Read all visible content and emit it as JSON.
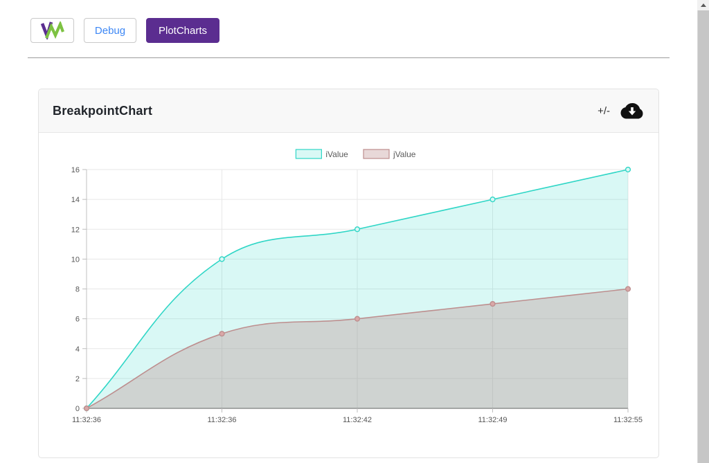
{
  "navbar": {
    "logo_name": "VM logo",
    "debug_label": "Debug",
    "plotcharts_label": "PlotCharts"
  },
  "card": {
    "title": "BreakpointChart",
    "toggle_label": "+/-"
  },
  "colors": {
    "plotcharts_bg": "#5b2d90",
    "debug_text": "#3d87f5",
    "logo_purple": "#5b2d90",
    "logo_green": "#7dc242",
    "ivalue_line": "#2fd6c6",
    "ivalue_fill": "rgba(47,214,198,0.18)",
    "jvalue_line": "#bd8e8e",
    "jvalue_fill": "rgba(189,142,142,0.35)"
  },
  "chart_data": {
    "type": "area",
    "title": "BreakpointChart",
    "categories": [
      "11:32:36",
      "11:32:36",
      "11:32:42",
      "11:32:49",
      "11:32:55"
    ],
    "series": [
      {
        "name": "iValue",
        "values": [
          0,
          10,
          12,
          14,
          16
        ],
        "line_color": "#2fd6c6",
        "fill_color": "rgba(47,214,198,0.18)",
        "point_fill": "#d9f8f5"
      },
      {
        "name": "jValue",
        "values": [
          0,
          5,
          6,
          7,
          8
        ],
        "line_color": "#bd8e8e",
        "fill_color": "rgba(189,142,142,0.35)",
        "point_fill": "#d9a8a8"
      }
    ],
    "xlabel": "",
    "ylabel": "",
    "ylim": [
      0,
      16
    ],
    "yticks": [
      0,
      2,
      4,
      6,
      8,
      10,
      12,
      14,
      16
    ],
    "grid": true,
    "legend_position": "top-center",
    "curve": "smooth"
  }
}
